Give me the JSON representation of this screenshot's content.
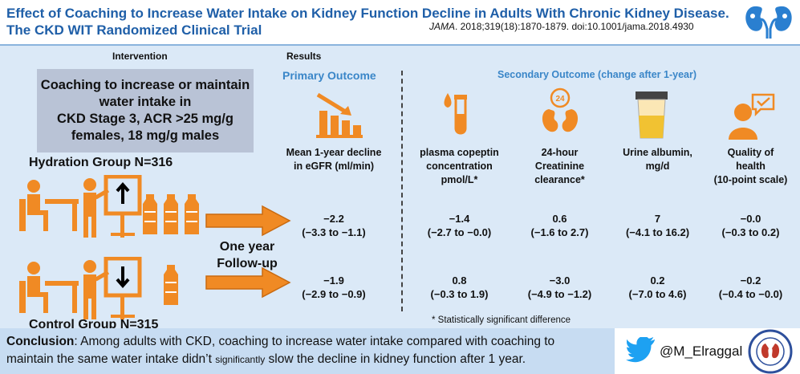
{
  "title": {
    "line1": "Effect of Coaching to Increase Water Intake on Kidney Function Decline in Adults With Chronic Kidney Disease.",
    "line2": "The CKD WIT Randomized Clinical Trial"
  },
  "citation": {
    "journal": "JAMA",
    "details": ". 2018;319(18):1870-1879. doi:10.1001/jama.2018.4930"
  },
  "headers": {
    "intervention": "Intervention",
    "results": "Results",
    "primary": "Primary Outcome",
    "secondary": "Secondary Outcome  (change after 1-year)"
  },
  "intervention_box": {
    "line1": "Coaching to increase or maintain",
    "line2": "water intake in",
    "line3": "CKD Stage 3, ACR >25 mg/g",
    "line4": "females, 18 mg/g males"
  },
  "groups": {
    "hydration": "Hydration Group N=316",
    "control": "Control Group N=315"
  },
  "followup": {
    "line1": "One year",
    "line2": "Follow-up"
  },
  "outcomes": [
    {
      "lines": [
        "Mean 1-year decline",
        "in eGFR (ml/min)"
      ],
      "hydration": [
        "−2.2",
        "(−3.3 to −1.1)"
      ],
      "control": [
        "−1.9",
        "(−2.9 to −0.9)"
      ],
      "icon": "declining-bar-chart-icon"
    },
    {
      "lines": [
        "plasma copeptin",
        "concentration",
        "pmol/L*"
      ],
      "hydration": [
        "−1.4",
        "(−2.7 to −0.0)"
      ],
      "control": [
        "0.8",
        "(−0.3 to 1.9)"
      ],
      "icon": "blood-test-tube-icon"
    },
    {
      "lines": [
        "24-hour",
        "Creatinine",
        "clearance*"
      ],
      "hydration": [
        "0.6",
        "(−1.6 to 2.7)"
      ],
      "control": [
        "−3.0",
        "(−4.9 to −1.2)"
      ],
      "icon": "kidney-24h-icon"
    },
    {
      "lines": [
        "Urine albumin,",
        "mg/d"
      ],
      "hydration": [
        "7",
        "(−4.1 to 16.2)"
      ],
      "control": [
        "0.2",
        "(−7.0 to 4.6)"
      ],
      "icon": "urine-cup-icon"
    },
    {
      "lines": [
        "Quality of",
        "health",
        "(10-point scale)"
      ],
      "hydration": [
        "−0.0",
        "(−0.3 to 0.2)"
      ],
      "control": [
        "−0.2",
        "(−0.4 to −0.0)"
      ],
      "icon": "person-checkmark-icon"
    }
  ],
  "footnote": "* Statistically significant difference",
  "conclusion": {
    "label": "Conclusion",
    "text1": ": Among adults with CKD, coaching to increase water intake compared with coaching to",
    "text2": "maintain the same water intake didn’t ",
    "small_word": "significantly",
    "text3": " slow the decline in kidney function after 1 year."
  },
  "social": {
    "handle": "@M_Elraggal",
    "icon": "twitter-bird-icon"
  },
  "colors": {
    "title_blue": "#1f5fa8",
    "accent_orange": "#f08a24",
    "panel_bg": "#dbe9f7",
    "box_bg": "#b9c3d6",
    "header_blue": "#3a86c8",
    "conclusion_bg": "#c7dcf2"
  }
}
